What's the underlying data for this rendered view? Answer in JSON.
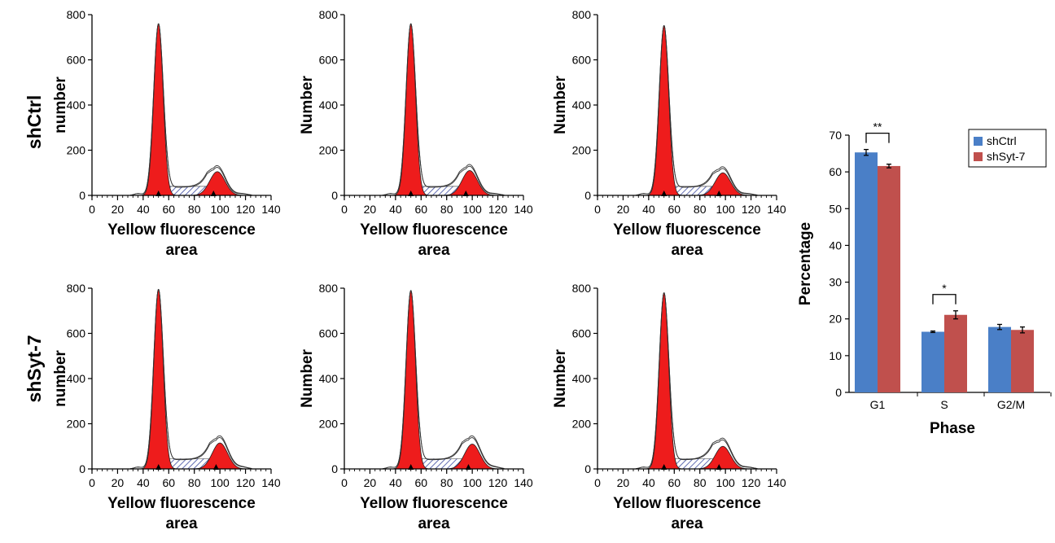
{
  "row_labels": [
    "shCtrl",
    "shSyt-7"
  ],
  "chart_data": [
    {
      "type": "area",
      "panel": "shCtrl-1",
      "xlabel": [
        "Yellow fluorescence",
        "area"
      ],
      "ylabel": "number",
      "xlim": [
        0,
        140
      ],
      "ylim": [
        0,
        800
      ],
      "xticks": [
        0,
        20,
        40,
        60,
        80,
        100,
        120,
        140
      ],
      "yticks": [
        0,
        200,
        400,
        600,
        800
      ],
      "g1_peak": {
        "x": 52,
        "y": 760
      },
      "g2_peak": {
        "x": 98,
        "y": 105
      },
      "total_g2_peak": 125,
      "s_level": 40
    },
    {
      "type": "area",
      "panel": "shCtrl-2",
      "xlabel": [
        "Yellow fluorescence",
        "area"
      ],
      "ylabel": "Number",
      "xlim": [
        0,
        140
      ],
      "ylim": [
        0,
        800
      ],
      "xticks": [
        0,
        20,
        40,
        60,
        80,
        100,
        120,
        140
      ],
      "yticks": [
        0,
        200,
        400,
        600,
        800
      ],
      "g1_peak": {
        "x": 52,
        "y": 760
      },
      "g2_peak": {
        "x": 98,
        "y": 110
      },
      "total_g2_peak": 130,
      "s_level": 40
    },
    {
      "type": "area",
      "panel": "shCtrl-3",
      "xlabel": [
        "Yellow fluorescence",
        "area"
      ],
      "ylabel": "Number",
      "xlim": [
        0,
        140
      ],
      "ylim": [
        0,
        800
      ],
      "xticks": [
        0,
        20,
        40,
        60,
        80,
        100,
        120,
        140
      ],
      "yticks": [
        0,
        200,
        400,
        600,
        800
      ],
      "g1_peak": {
        "x": 52,
        "y": 752
      },
      "g2_peak": {
        "x": 98,
        "y": 100
      },
      "total_g2_peak": 120,
      "s_level": 40
    },
    {
      "type": "area",
      "panel": "shSyt-7-1",
      "xlabel": [
        "Yellow fluorescence",
        "area"
      ],
      "ylabel": "number",
      "xlim": [
        0,
        140
      ],
      "ylim": [
        0,
        800
      ],
      "xticks": [
        0,
        20,
        40,
        60,
        80,
        100,
        120,
        140
      ],
      "yticks": [
        0,
        200,
        400,
        600,
        800
      ],
      "g1_peak": {
        "x": 52,
        "y": 795
      },
      "g2_peak": {
        "x": 100,
        "y": 115
      },
      "total_g2_peak": 140,
      "s_level": 45
    },
    {
      "type": "area",
      "panel": "shSyt-7-2",
      "xlabel": [
        "Yellow fluorescence",
        "area"
      ],
      "ylabel": "Number",
      "xlim": [
        0,
        140
      ],
      "ylim": [
        0,
        800
      ],
      "xticks": [
        0,
        20,
        40,
        60,
        80,
        100,
        120,
        140
      ],
      "yticks": [
        0,
        200,
        400,
        600,
        800
      ],
      "g1_peak": {
        "x": 52,
        "y": 790
      },
      "g2_peak": {
        "x": 100,
        "y": 110
      },
      "total_g2_peak": 140,
      "s_level": 45
    },
    {
      "type": "area",
      "panel": "shSyt-7-3",
      "xlabel": [
        "Yellow fluorescence",
        "area"
      ],
      "ylabel": "Number",
      "xlim": [
        0,
        140
      ],
      "ylim": [
        0,
        800
      ],
      "xticks": [
        0,
        20,
        40,
        60,
        80,
        100,
        120,
        140
      ],
      "yticks": [
        0,
        200,
        400,
        600,
        800
      ],
      "g1_peak": {
        "x": 52,
        "y": 780
      },
      "g2_peak": {
        "x": 98,
        "y": 100
      },
      "total_g2_peak": 130,
      "s_level": 45
    },
    {
      "type": "bar",
      "categories": [
        "G1",
        "S",
        "G2/M"
      ],
      "series": [
        {
          "name": "shCtrl",
          "values": [
            65.3,
            16.5,
            17.8
          ],
          "errors": [
            0.8,
            0.2,
            0.7
          ],
          "color": "#4a7fc7"
        },
        {
          "name": "shSyt-7",
          "values": [
            61.6,
            21.1,
            17.0
          ],
          "errors": [
            0.5,
            1.1,
            0.8
          ],
          "color": "#c0504d"
        }
      ],
      "xlabel": "Phase",
      "ylabel": "Percentage",
      "ylim": [
        0,
        70
      ],
      "yticks": [
        0,
        10,
        20,
        30,
        40,
        50,
        60,
        70
      ],
      "legend": "top-right",
      "significance": [
        {
          "category": "G1",
          "label": "**"
        },
        {
          "category": "S",
          "label": "*"
        }
      ]
    }
  ]
}
